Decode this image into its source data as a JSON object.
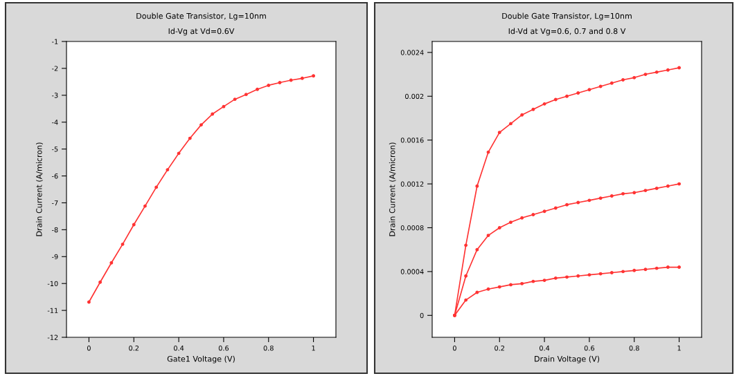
{
  "chart_data": [
    {
      "type": "line",
      "title": "Double Gate Transistor, Lg=10nm",
      "subtitle": "Id-Vg at Vd=0.6V",
      "xlabel": "Gate1 Voltage (V)",
      "ylabel": "Drain Current (A/micron)",
      "x": [
        0,
        0.05,
        0.1,
        0.15,
        0.2,
        0.25,
        0.3,
        0.35,
        0.4,
        0.45,
        0.5,
        0.55,
        0.6,
        0.65,
        0.7,
        0.75,
        0.8,
        0.85,
        0.9,
        0.95,
        1.0
      ],
      "series": [
        {
          "color": "#ff3333",
          "values": [
            -10.69,
            -9.95,
            -9.23,
            -8.54,
            -7.81,
            -7.12,
            -6.42,
            -5.77,
            -5.16,
            -4.6,
            -4.1,
            -3.7,
            -3.42,
            -3.15,
            -2.97,
            -2.78,
            -2.63,
            -2.53,
            -2.44,
            -2.37,
            -2.28
          ]
        }
      ],
      "xlim": [
        -0.1,
        1.1
      ],
      "xticks": [
        0,
        0.2,
        0.4,
        0.6,
        0.8,
        1
      ],
      "ylim": [
        -12,
        -1
      ],
      "yticks": [
        -12,
        -11,
        -10,
        -9,
        -8,
        -7,
        -6,
        -5,
        -4,
        -3,
        -2,
        -1
      ],
      "grid": false,
      "legend": false,
      "marker": "circle",
      "line_style": "solid"
    },
    {
      "type": "line",
      "title": "Double Gate Transistor, Lg=10nm",
      "subtitle": "Id-Vd at Vg=0.6, 0.7 and 0.8 V",
      "xlabel": "Drain Voltage (V)",
      "ylabel": "Drain Current (A/micron)",
      "x": [
        0,
        0.05,
        0.1,
        0.15,
        0.2,
        0.25,
        0.3,
        0.35,
        0.4,
        0.45,
        0.5,
        0.55,
        0.6,
        0.65,
        0.7,
        0.75,
        0.8,
        0.85,
        0.9,
        0.95,
        1.0
      ],
      "series": [
        {
          "color": "#ff3333",
          "values": [
            0,
            0.00064,
            0.00118,
            0.00149,
            0.00167,
            0.00175,
            0.00183,
            0.00188,
            0.00193,
            0.00197,
            0.002,
            0.00203,
            0.00206,
            0.00209,
            0.00212,
            0.00215,
            0.00217,
            0.0022,
            0.00222,
            0.00224,
            0.00226
          ]
        },
        {
          "color": "#ff3333",
          "values": [
            0,
            0.00036,
            0.0006,
            0.00073,
            0.0008,
            0.00085,
            0.00089,
            0.00092,
            0.00095,
            0.00098,
            0.00101,
            0.00103,
            0.00105,
            0.00107,
            0.00109,
            0.00111,
            0.00112,
            0.00114,
            0.00116,
            0.00118,
            0.0012
          ]
        },
        {
          "color": "#ff3333",
          "values": [
            0,
            0.00014,
            0.00021,
            0.00024,
            0.00026,
            0.00028,
            0.00029,
            0.00031,
            0.00032,
            0.00034,
            0.00035,
            0.00036,
            0.00037,
            0.00038,
            0.00039,
            0.0004,
            0.00041,
            0.00042,
            0.00043,
            0.00044,
            0.00044
          ]
        }
      ],
      "xlim": [
        -0.1,
        1.1
      ],
      "xticks": [
        0,
        0.2,
        0.4,
        0.6,
        0.8,
        1
      ],
      "ylim": [
        -0.0002,
        0.0025
      ],
      "yticks": [
        0,
        0.0004,
        0.0008,
        0.0012,
        0.0016,
        0.002,
        0.0024
      ],
      "grid": false,
      "legend": false,
      "marker": "circle",
      "line_style": "solid"
    }
  ]
}
